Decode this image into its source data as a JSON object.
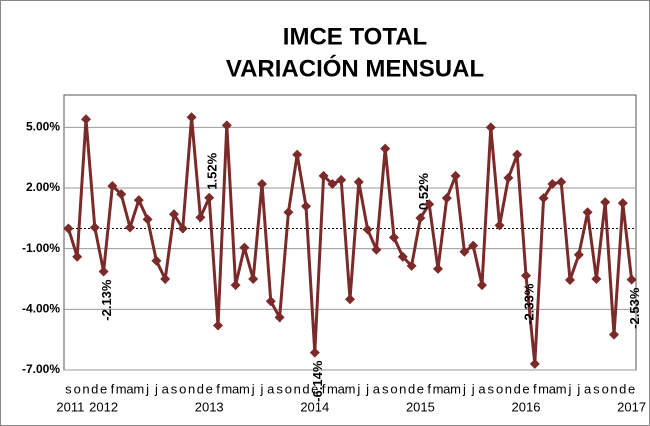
{
  "chart_data": {
    "type": "line",
    "title": [
      "IMCE TOTAL",
      "VARIACIÓN MENSUAL"
    ],
    "categories": [
      "s",
      "o",
      "n",
      "d",
      "e",
      "f",
      "m",
      "a",
      "m",
      "j",
      "j",
      "a",
      "s",
      "o",
      "n",
      "d",
      "e",
      "f",
      "m",
      "a",
      "m",
      "j",
      "j",
      "a",
      "s",
      "o",
      "n",
      "d",
      "e",
      "f",
      "m",
      "a",
      "m",
      "j",
      "j",
      "a",
      "s",
      "o",
      "n",
      "d",
      "e",
      "f",
      "m",
      "a",
      "m",
      "j",
      "j",
      "a",
      "s",
      "o",
      "n",
      "d",
      "e",
      "f",
      "m",
      "a",
      "m",
      "j",
      "j",
      "a",
      "s",
      "o",
      "n",
      "d",
      "e"
    ],
    "year_labels": [
      "2011",
      null,
      null,
      null,
      "2012",
      null,
      null,
      null,
      null,
      null,
      null,
      null,
      null,
      null,
      null,
      null,
      "2013",
      null,
      null,
      null,
      null,
      null,
      null,
      null,
      null,
      null,
      null,
      null,
      "2014",
      null,
      null,
      null,
      null,
      null,
      null,
      null,
      null,
      null,
      null,
      null,
      "2015",
      null,
      null,
      null,
      null,
      null,
      null,
      null,
      null,
      null,
      null,
      null,
      "2016",
      null,
      null,
      null,
      null,
      null,
      null,
      null,
      null,
      null,
      null,
      null,
      "2017"
    ],
    "series": [
      {
        "color": "#7b2a2a",
        "values": [
          0,
          -1.4,
          5.4,
          0.05,
          -2.13,
          2.1,
          1.7,
          0.05,
          1.4,
          0.45,
          -1.6,
          -2.5,
          0.7,
          0,
          5.5,
          0.55,
          1.52,
          -4.8,
          5.1,
          -2.8,
          -0.95,
          -2.5,
          2.2,
          -3.6,
          -4.4,
          0.8,
          3.65,
          1.1,
          -6.14,
          2.6,
          2.2,
          2.4,
          -3.5,
          2.3,
          -0.05,
          -1.05,
          3.95,
          -0.45,
          -1.4,
          -1.85,
          0.52,
          1.2,
          -2.0,
          1.5,
          2.6,
          -1.15,
          -0.85,
          -2.8,
          5.0,
          0.15,
          2.5,
          3.65,
          -2.33,
          -6.7,
          1.5,
          2.2,
          2.3,
          -2.55,
          -1.3,
          0.8,
          -2.5,
          1.3,
          -5.25,
          1.25,
          -2.53
        ],
        "value_labels": [
          null,
          null,
          null,
          null,
          "-2.13%",
          null,
          null,
          null,
          null,
          null,
          null,
          null,
          null,
          null,
          null,
          null,
          "1.52%",
          null,
          null,
          null,
          null,
          null,
          null,
          null,
          null,
          null,
          null,
          null,
          "-6.14%",
          null,
          null,
          null,
          null,
          null,
          null,
          null,
          null,
          null,
          null,
          null,
          "0.52%",
          null,
          null,
          null,
          null,
          null,
          null,
          null,
          null,
          null,
          null,
          null,
          "-2.33%",
          null,
          null,
          null,
          null,
          null,
          null,
          null,
          null,
          null,
          null,
          null,
          "-2.53%"
        ]
      }
    ],
    "ylim": [
      -7,
      6.6
    ],
    "yticks": [
      {
        "value": 5,
        "label": "5.00%"
      },
      {
        "value": 2,
        "label": "2.00%"
      },
      {
        "value": -1,
        "label": "-1.00%"
      },
      {
        "value": -4,
        "label": "-4.00%"
      },
      {
        "value": -7,
        "label": "-7.00%"
      }
    ],
    "grid": true
  }
}
